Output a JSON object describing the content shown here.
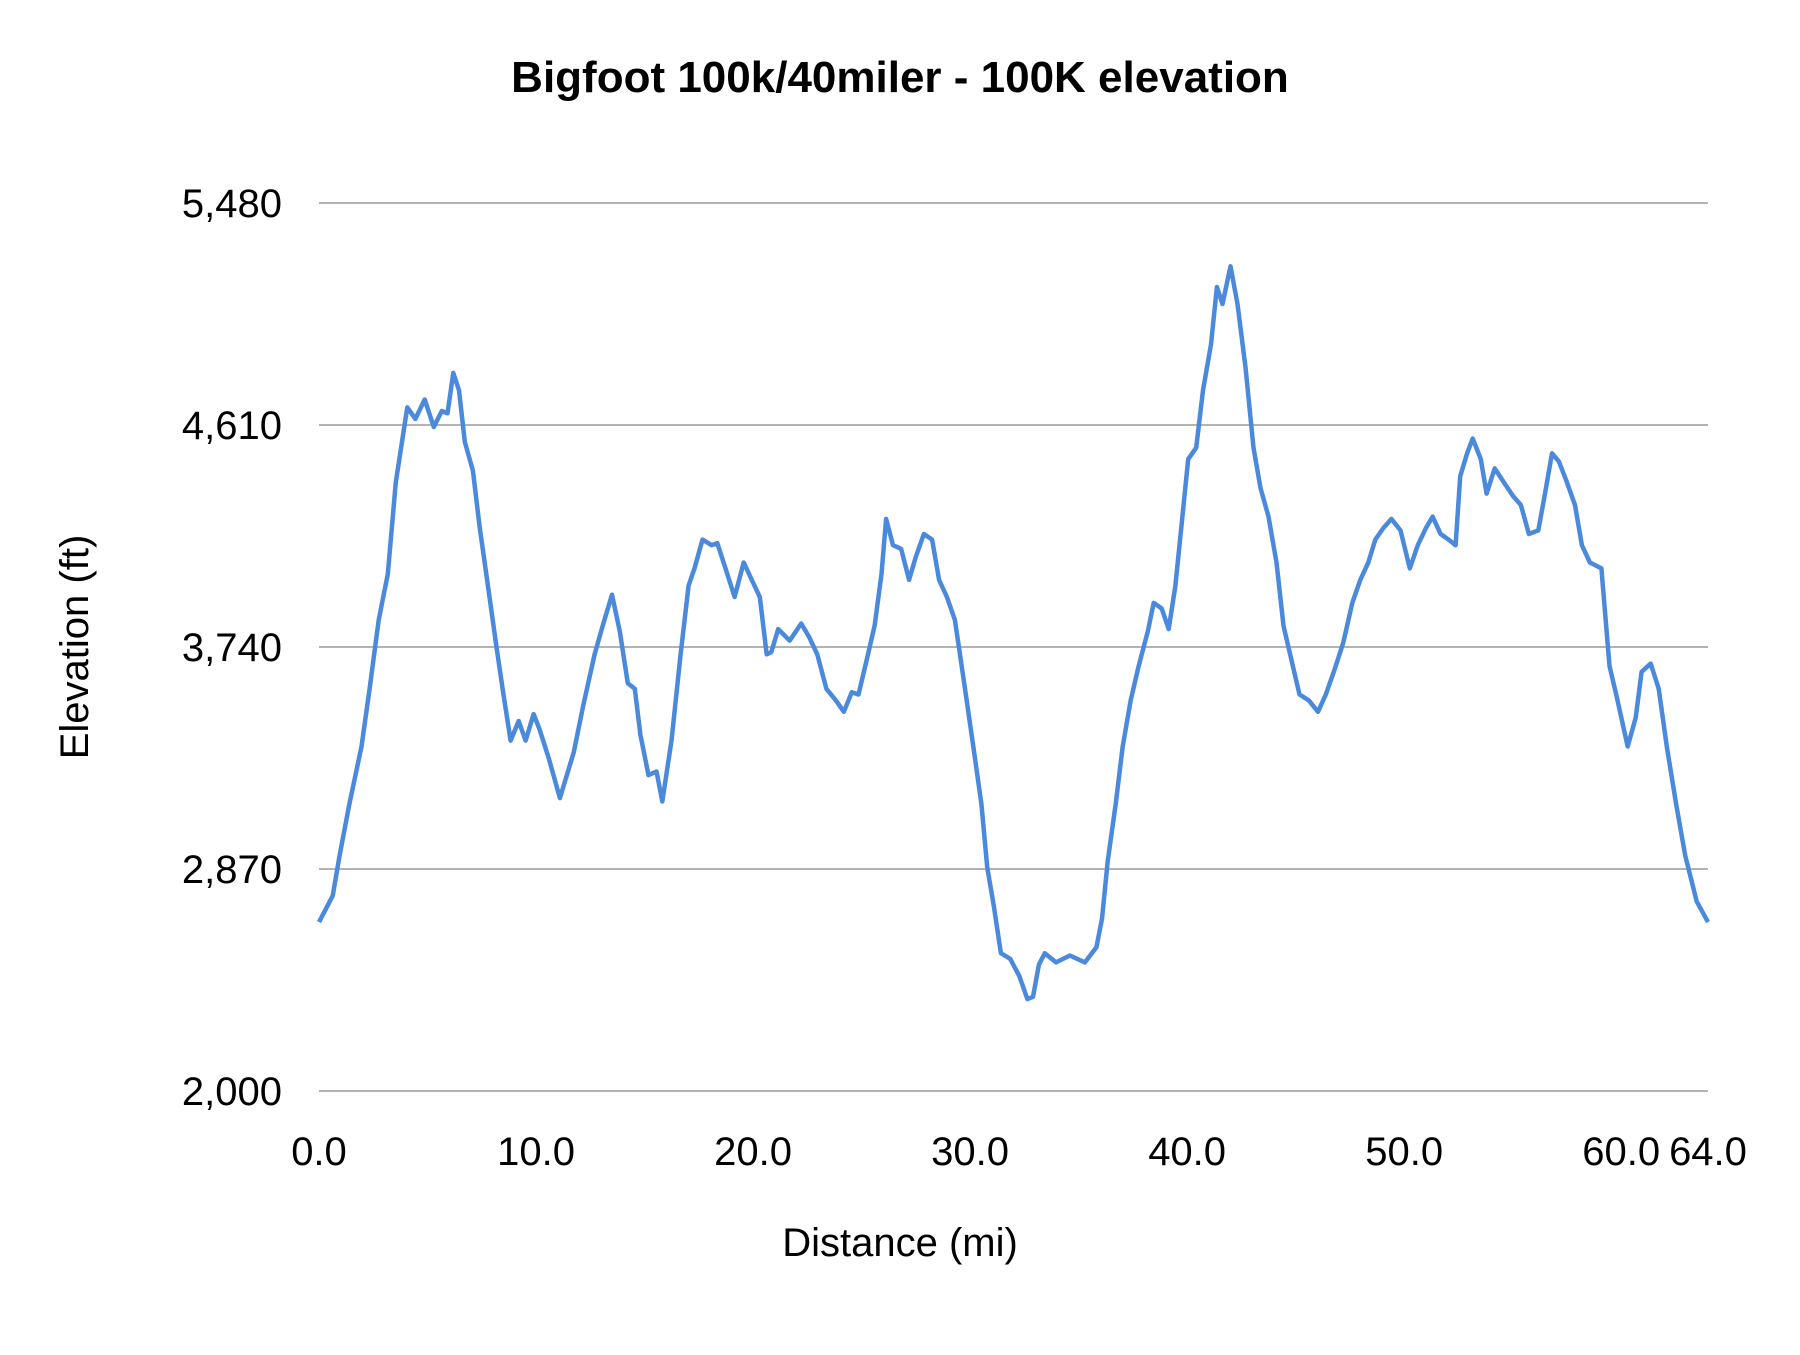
{
  "chart_data": {
    "type": "line",
    "title": "Bigfoot 100k/40miler - 100K elevation",
    "xlabel": "Distance (mi)",
    "ylabel": "Elevation (ft)",
    "xlim": [
      0,
      64
    ],
    "ylim": [
      2000,
      5480
    ],
    "x_ticks": [
      0,
      10,
      20,
      30,
      40,
      50,
      60,
      64
    ],
    "x_tick_labels": [
      "0.0",
      "10.0",
      "20.0",
      "30.0",
      "40.0",
      "50.0",
      "60.0",
      "64.0"
    ],
    "y_ticks": [
      2000,
      2870,
      3740,
      4610,
      5480
    ],
    "y_tick_labels": [
      "2,000",
      "2,870",
      "3,740",
      "4,610",
      "5,480"
    ],
    "grid": "horizontal",
    "legend": "none",
    "colors": {
      "line": "#4a89dc",
      "grid": "#b3b3b3"
    },
    "series": [
      {
        "x": [
          0,
          0.63,
          0.95,
          1.4,
          1.96,
          2.33,
          2.75,
          3.17,
          3.54,
          4.07,
          4.44,
          4.87,
          5.29,
          5.66,
          5.92,
          6.19,
          6.45,
          6.72,
          7.09,
          7.41,
          7.78,
          8.15,
          8.46,
          8.83,
          9.2,
          9.52,
          9.89,
          10.16,
          10.58,
          11.1,
          11.74,
          12.17,
          12.7,
          13.07,
          13.5,
          13.86,
          14.23,
          14.55,
          14.81,
          15.18,
          15.55,
          15.82,
          16.24,
          16.66,
          17.03,
          17.3,
          17.67,
          18.09,
          18.35,
          18.73,
          19.15,
          19.57,
          19.94,
          20.31,
          20.63,
          20.84,
          21.16,
          21.69,
          22.22,
          22.59,
          22.96,
          23.38,
          23.81,
          24.18,
          24.55,
          24.86,
          25.23,
          25.6,
          25.92,
          26.13,
          26.45,
          26.82,
          27.19,
          27.5,
          27.87,
          28.25,
          28.57,
          28.93,
          29.3,
          29.73,
          30.15,
          30.52,
          30.79,
          31.1,
          31.42,
          31.85,
          32.27,
          32.64,
          32.9,
          33.17,
          33.44,
          33.96,
          34.6,
          35.29,
          35.82,
          36.08,
          36.34,
          36.71,
          37.03,
          37.4,
          37.77,
          38.19,
          38.46,
          38.83,
          39.15,
          39.46,
          39.78,
          40.05,
          40.42,
          40.73,
          41.1,
          41.37,
          41.63,
          42.0,
          42.32,
          42.69,
          43.06,
          43.38,
          43.75,
          44.12,
          44.44,
          44.81,
          45.18,
          45.6,
          46.03,
          46.39,
          46.76,
          47.19,
          47.61,
          47.98,
          48.35,
          48.67,
          49.04,
          49.41,
          49.83,
          50.26,
          50.63,
          51.0,
          51.31,
          51.68,
          52.05,
          52.37,
          52.58,
          52.9,
          53.16,
          53.53,
          53.8,
          54.17,
          54.59,
          55.01,
          55.38,
          55.75,
          56.18,
          56.49,
          56.81,
          57.13,
          57.5,
          57.87,
          58.19,
          58.56,
          59.09,
          59.46,
          59.77,
          60.3,
          60.67,
          60.94,
          61.36,
          61.73,
          62.1,
          62.53,
          62.95,
          63.48,
          64.0
        ],
        "y": [
          2662,
          2765,
          2923,
          3125,
          3350,
          3576,
          3846,
          4026,
          4386,
          4679,
          4634,
          4710,
          4602,
          4665,
          4656,
          4814,
          4746,
          4544,
          4431,
          4206,
          3981,
          3756,
          3576,
          3373,
          3450,
          3373,
          3477,
          3418,
          3306,
          3148,
          3328,
          3508,
          3711,
          3823,
          3945,
          3801,
          3598,
          3576,
          3396,
          3238,
          3252,
          3135,
          3373,
          3711,
          3981,
          4048,
          4161,
          4139,
          4147,
          4048,
          3936,
          4071,
          4003,
          3936,
          3711,
          3720,
          3810,
          3765,
          3832,
          3778,
          3711,
          3576,
          3531,
          3486,
          3563,
          3554,
          3688,
          3823,
          4026,
          4242,
          4139,
          4125,
          4003,
          4093,
          4183,
          4161,
          4003,
          3936,
          3846,
          3598,
          3350,
          3125,
          2878,
          2720,
          2540,
          2518,
          2450,
          2360,
          2369,
          2495,
          2540,
          2504,
          2531,
          2504,
          2563,
          2675,
          2900,
          3125,
          3350,
          3531,
          3666,
          3801,
          3913,
          3891,
          3810,
          3981,
          4251,
          4476,
          4521,
          4746,
          4926,
          5151,
          5084,
          5232,
          5084,
          4836,
          4521,
          4363,
          4251,
          4071,
          3823,
          3688,
          3554,
          3531,
          3486,
          3554,
          3643,
          3756,
          3913,
          4003,
          4071,
          4161,
          4206,
          4242,
          4197,
          4048,
          4139,
          4206,
          4251,
          4183,
          4161,
          4139,
          4409,
          4499,
          4557,
          4476,
          4341,
          4440,
          4386,
          4332,
          4296,
          4183,
          4197,
          4341,
          4499,
          4467,
          4386,
          4296,
          4139,
          4071,
          4048,
          3666,
          3554,
          3350,
          3463,
          3643,
          3675,
          3576,
          3350,
          3125,
          2923,
          2743,
          2662
        ]
      }
    ]
  }
}
